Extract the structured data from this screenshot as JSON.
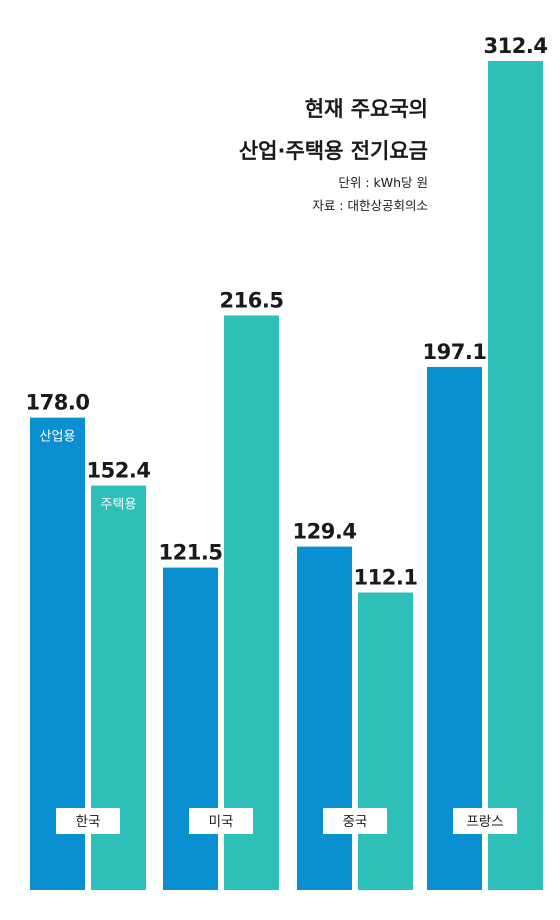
{
  "title_line1": "현재 주요국의",
  "title_line2": "산업·주택용 전기요금",
  "unit_note": "단위 : kWh당 원",
  "source_note": "자료 : 대한상공회의소",
  "colors": {
    "industrial": "#0a8fd1",
    "residential": "#2ebfb8"
  },
  "chart_data": {
    "type": "bar",
    "title": "현재 주요국의 산업·주택용 전기요금",
    "categories": [
      "한국",
      "미국",
      "중국",
      "프랑스"
    ],
    "series": [
      {
        "name": "산업용",
        "values": [
          178.0,
          121.5,
          129.4,
          197.1
        ],
        "value_labels": [
          "178.0",
          "121.5",
          "129.4",
          "197.1"
        ]
      },
      {
        "name": "주택용",
        "values": [
          152.4,
          216.5,
          112.1,
          312.4
        ],
        "value_labels": [
          "152.4",
          "216.5",
          "112.1",
          "312.4"
        ]
      }
    ],
    "ylim": [
      0,
      312.4
    ],
    "grid": false,
    "legend": "labels inside first group bars"
  }
}
